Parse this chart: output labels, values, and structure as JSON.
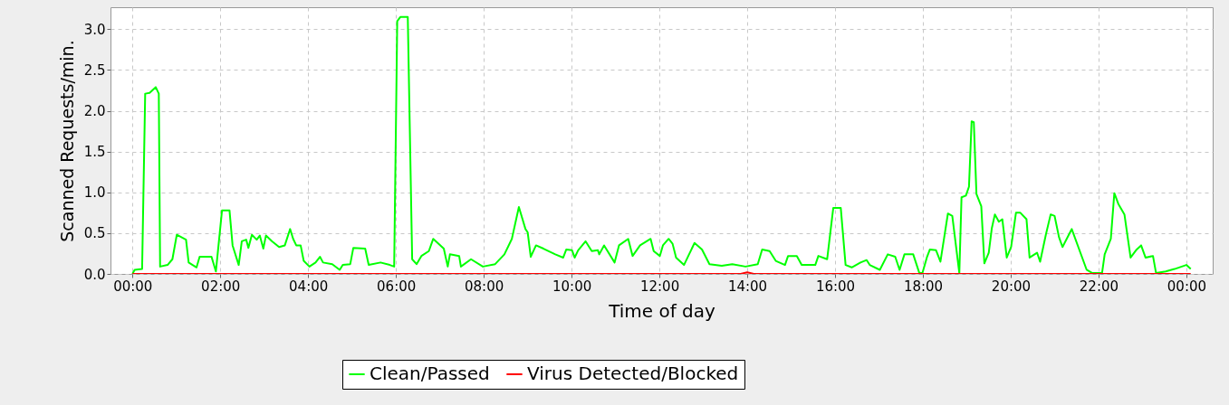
{
  "chart_data": {
    "type": "line",
    "xlabel": "Time of day",
    "ylabel": "Scanned Requests/min.",
    "xlim": [
      -0.5,
      24.6
    ],
    "ylim": [
      0,
      3.27
    ],
    "xticks": [
      {
        "value": 0,
        "label": "00:00"
      },
      {
        "value": 2,
        "label": "02:00"
      },
      {
        "value": 4,
        "label": "04:00"
      },
      {
        "value": 6,
        "label": "06:00"
      },
      {
        "value": 8,
        "label": "08:00"
      },
      {
        "value": 10,
        "label": "10:00"
      },
      {
        "value": 12,
        "label": "12:00"
      },
      {
        "value": 14,
        "label": "14:00"
      },
      {
        "value": 16,
        "label": "16:00"
      },
      {
        "value": 18,
        "label": "18:00"
      },
      {
        "value": 20,
        "label": "20:00"
      },
      {
        "value": 22,
        "label": "22:00"
      },
      {
        "value": 24,
        "label": "00:00"
      }
    ],
    "yticks": [
      {
        "value": 0,
        "label": "0.0"
      },
      {
        "value": 0.5,
        "label": "0.5"
      },
      {
        "value": 1,
        "label": "1.0"
      },
      {
        "value": 1.5,
        "label": "1.5"
      },
      {
        "value": 2,
        "label": "2.0"
      },
      {
        "value": 2.5,
        "label": "2.5"
      },
      {
        "value": 3,
        "label": "3.0"
      }
    ],
    "grid": true,
    "legend": "bottom",
    "line_style": "solid",
    "series": [
      {
        "name": "Clean/Passed",
        "color": "#00ff00",
        "x": [
          0,
          0.05,
          0.22,
          0.29,
          0.39,
          0.53,
          0.6,
          0.63,
          0.8,
          0.91,
          1.01,
          1.22,
          1.28,
          1.46,
          1.53,
          1.8,
          1.9,
          2.04,
          2.21,
          2.28,
          2.42,
          2.49,
          2.59,
          2.64,
          2.72,
          2.83,
          2.9,
          2.98,
          3.04,
          3.18,
          3.34,
          3.47,
          3.59,
          3.66,
          3.73,
          3.83,
          3.9,
          4.03,
          4.17,
          4.27,
          4.34,
          4.55,
          4.72,
          4.79,
          4.96,
          5.03,
          5.3,
          5.38,
          5.65,
          5.86,
          5.96,
          6.03,
          6.1,
          6.27,
          6.37,
          6.47,
          6.58,
          6.75,
          6.85,
          6.99,
          7.09,
          7.18,
          7.23,
          7.44,
          7.48,
          7.71,
          7.98,
          8.26,
          8.47,
          8.64,
          8.8,
          8.95,
          9.0,
          9.07,
          9.19,
          9.36,
          9.63,
          9.81,
          9.88,
          10.01,
          10.07,
          10.15,
          10.32,
          10.46,
          10.6,
          10.63,
          10.74,
          10.98,
          11.08,
          11.29,
          11.39,
          11.56,
          11.8,
          11.87,
          12.01,
          12.08,
          12.21,
          12.3,
          12.38,
          12.56,
          12.8,
          12.97,
          13.14,
          13.42,
          13.66,
          13.96,
          14.24,
          14.34,
          14.51,
          14.65,
          14.86,
          14.93,
          15.13,
          15.24,
          15.55,
          15.62,
          15.82,
          15.96,
          16.13,
          16.24,
          16.38,
          16.58,
          16.72,
          16.79,
          17.02,
          17.2,
          17.37,
          17.47,
          17.58,
          17.78,
          17.92,
          17.99,
          18.09,
          18.16,
          18.3,
          18.4,
          18.57,
          18.67,
          18.83,
          18.88,
          18.98,
          19.05,
          19.11,
          19.16,
          19.22,
          19.33,
          19.4,
          19.5,
          19.57,
          19.64,
          19.73,
          19.81,
          19.91,
          20.01,
          20.12,
          20.22,
          20.36,
          20.43,
          20.6,
          20.67,
          20.8,
          20.91,
          21.0,
          21.1,
          21.18,
          21.39,
          21.73,
          21.86,
          22.08,
          22.14,
          22.28,
          22.36,
          22.45,
          22.59,
          22.73,
          22.87,
          22.97,
          23.07,
          23.24,
          23.31,
          23.53,
          23.73,
          24.0,
          24.1
        ],
        "values": [
          0,
          0.05,
          0.06,
          2.21,
          2.22,
          2.29,
          2.21,
          0.09,
          0.11,
          0.18,
          0.48,
          0.42,
          0.14,
          0.08,
          0.21,
          0.21,
          0.03,
          0.78,
          0.78,
          0.35,
          0.11,
          0.4,
          0.42,
          0.32,
          0.48,
          0.42,
          0.47,
          0.31,
          0.47,
          0.4,
          0.33,
          0.35,
          0.55,
          0.43,
          0.35,
          0.35,
          0.16,
          0.09,
          0.14,
          0.21,
          0.14,
          0.12,
          0.05,
          0.11,
          0.12,
          0.32,
          0.31,
          0.11,
          0.14,
          0.11,
          0.09,
          3.1,
          3.15,
          3.15,
          0.18,
          0.12,
          0.22,
          0.28,
          0.43,
          0.36,
          0.31,
          0.09,
          0.24,
          0.22,
          0.09,
          0.18,
          0.09,
          0.12,
          0.24,
          0.43,
          0.82,
          0.55,
          0.51,
          0.21,
          0.35,
          0.31,
          0.24,
          0.2,
          0.3,
          0.29,
          0.2,
          0.29,
          0.4,
          0.28,
          0.29,
          0.24,
          0.35,
          0.14,
          0.35,
          0.43,
          0.22,
          0.35,
          0.43,
          0.28,
          0.22,
          0.35,
          0.43,
          0.37,
          0.2,
          0.11,
          0.38,
          0.3,
          0.12,
          0.1,
          0.12,
          0.09,
          0.12,
          0.3,
          0.28,
          0.16,
          0.11,
          0.22,
          0.22,
          0.11,
          0.11,
          0.22,
          0.18,
          0.81,
          0.81,
          0.11,
          0.08,
          0.14,
          0.17,
          0.11,
          0.05,
          0.24,
          0.21,
          0.05,
          0.24,
          0.24,
          0.01,
          0.01,
          0.2,
          0.3,
          0.29,
          0.15,
          0.74,
          0.71,
          0.01,
          0.94,
          0.96,
          1.07,
          1.87,
          1.86,
          0.98,
          0.83,
          0.13,
          0.26,
          0.56,
          0.73,
          0.64,
          0.67,
          0.2,
          0.33,
          0.75,
          0.75,
          0.67,
          0.2,
          0.26,
          0.15,
          0.48,
          0.73,
          0.71,
          0.45,
          0.33,
          0.55,
          0.05,
          0.01,
          0.01,
          0.24,
          0.43,
          0.99,
          0.86,
          0.73,
          0.2,
          0.3,
          0.35,
          0.2,
          0.22,
          0.01,
          0.03,
          0.06,
          0.11,
          0.06
        ]
      },
      {
        "name": "Virus Detected/Blocked",
        "color": "#ff0000",
        "x": [
          0,
          13.85,
          14.0,
          14.15,
          24.1
        ],
        "values": [
          0,
          0,
          0.02,
          0,
          0
        ]
      }
    ]
  }
}
